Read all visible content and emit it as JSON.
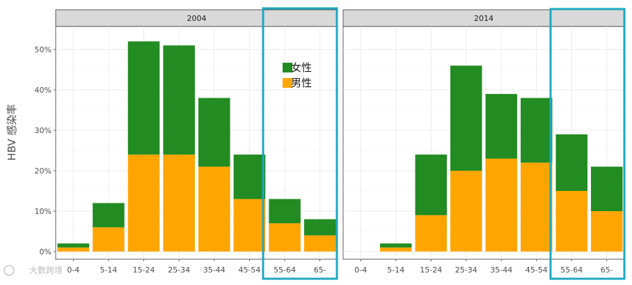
{
  "chart_data": {
    "type": "bar",
    "stacked": true,
    "ylabel": "HBV 感染率",
    "ylim": [
      0,
      0.55
    ],
    "yticks": [
      0,
      0.1,
      0.2,
      0.3,
      0.4,
      0.5
    ],
    "ytick_labels": [
      "0%",
      "10%",
      "20%",
      "30%",
      "40%",
      "50%"
    ],
    "categories": [
      "0-4",
      "5-14",
      "15-24",
      "25-34",
      "35-44",
      "45-54",
      "55-64",
      "65-"
    ],
    "legend": {
      "position": "inside-top-right",
      "entries": [
        {
          "name": "女性",
          "color": "#228b22"
        },
        {
          "name": "男性",
          "color": "#ffa500"
        }
      ]
    },
    "highlight": {
      "categories": [
        "55-64",
        "65-"
      ],
      "color": "#1ca8c2"
    },
    "panels": [
      {
        "title": "2004",
        "series": [
          {
            "name": "男性",
            "color": "#ffa500",
            "values": [
              0.01,
              0.06,
              0.24,
              0.24,
              0.21,
              0.13,
              0.07,
              0.04
            ]
          },
          {
            "name": "女性",
            "color": "#228b22",
            "values": [
              0.01,
              0.06,
              0.28,
              0.27,
              0.17,
              0.11,
              0.06,
              0.04
            ]
          }
        ]
      },
      {
        "title": "2014",
        "series": [
          {
            "name": "男性",
            "color": "#ffa500",
            "values": [
              0.0,
              0.01,
              0.09,
              0.2,
              0.23,
              0.22,
              0.15,
              0.1
            ]
          },
          {
            "name": "女性",
            "color": "#228b22",
            "values": [
              0.0,
              0.01,
              0.15,
              0.26,
              0.16,
              0.16,
              0.14,
              0.11
            ]
          }
        ]
      }
    ]
  },
  "watermark": {
    "text": "大数跨境"
  }
}
